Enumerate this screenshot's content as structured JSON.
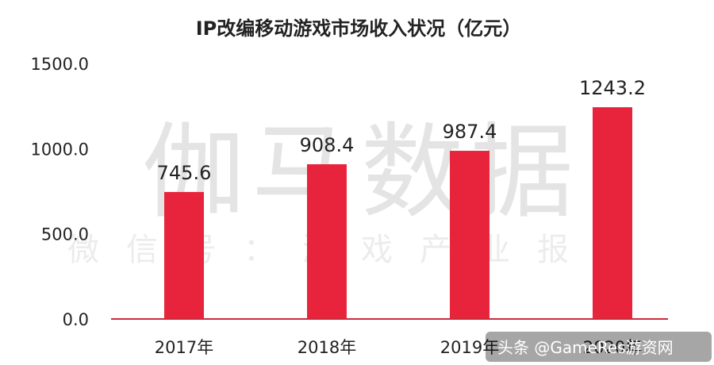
{
  "chart_data": {
    "type": "bar",
    "title": "IP改编移动游戏市场收入状况（亿元）",
    "categories": [
      "2017年",
      "2018年",
      "2019年",
      "2020年"
    ],
    "values": [
      745.6,
      908.4,
      987.4,
      1243.2
    ],
    "value_labels": [
      "745.6",
      "908.4",
      "987.4",
      "1243.2"
    ],
    "ylim": [
      0,
      1500
    ],
    "yticks": [
      0,
      500,
      1000,
      1500
    ],
    "ytick_labels": [
      "0.0",
      "500.0",
      "1000.0",
      "1500.0"
    ],
    "grid": false,
    "bar_color": "#e8243c"
  },
  "watermark": {
    "main": "伽马数据",
    "sub": "微信号：游戏产业报告"
  },
  "credit": "头条 @GameRes游资网"
}
